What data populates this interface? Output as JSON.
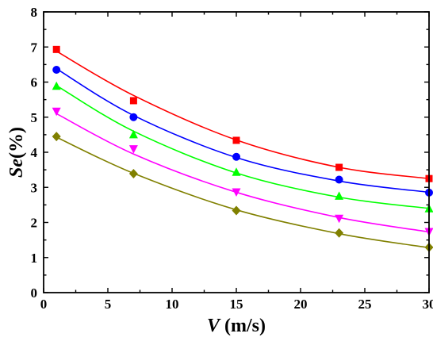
{
  "chart_data": {
    "type": "scatter",
    "title": "",
    "xlabel": {
      "symbol": "V",
      "unit": " (m/s)"
    },
    "ylabel": {
      "symbol": "Se",
      "unit": "(%)"
    },
    "xlim": [
      0,
      30
    ],
    "ylim": [
      0,
      8
    ],
    "xticks": [
      0,
      5,
      10,
      15,
      20,
      25,
      30
    ],
    "yticks": [
      0,
      1,
      2,
      3,
      4,
      5,
      6,
      7,
      8
    ],
    "grid": false,
    "legend": "none",
    "x": [
      1,
      7,
      15,
      23,
      30
    ],
    "series": [
      {
        "color": "#ff0000",
        "marker": "square",
        "values": [
          6.93,
          5.47,
          4.34,
          3.57,
          3.25
        ],
        "fit": [
          6.88,
          5.62,
          4.35,
          3.57,
          3.25
        ]
      },
      {
        "color": "#0000ff",
        "marker": "circle",
        "values": [
          6.35,
          5.0,
          3.87,
          3.22,
          2.85
        ],
        "fit": [
          6.38,
          5.05,
          3.85,
          3.18,
          2.86
        ]
      },
      {
        "color": "#00ff00",
        "marker": "triangle-up",
        "values": [
          5.88,
          4.5,
          3.43,
          2.75,
          2.39
        ],
        "fit": [
          5.9,
          4.6,
          3.41,
          2.72,
          2.4
        ]
      },
      {
        "color": "#ff00ff",
        "marker": "triangle-down",
        "values": [
          5.17,
          4.1,
          2.87,
          2.12,
          1.74
        ],
        "fit": [
          5.1,
          3.95,
          2.86,
          2.14,
          1.73
        ]
      },
      {
        "color": "#808000",
        "marker": "diamond",
        "values": [
          4.45,
          3.39,
          2.34,
          1.7,
          1.29
        ],
        "fit": [
          4.43,
          3.4,
          2.36,
          1.68,
          1.28
        ]
      }
    ]
  }
}
